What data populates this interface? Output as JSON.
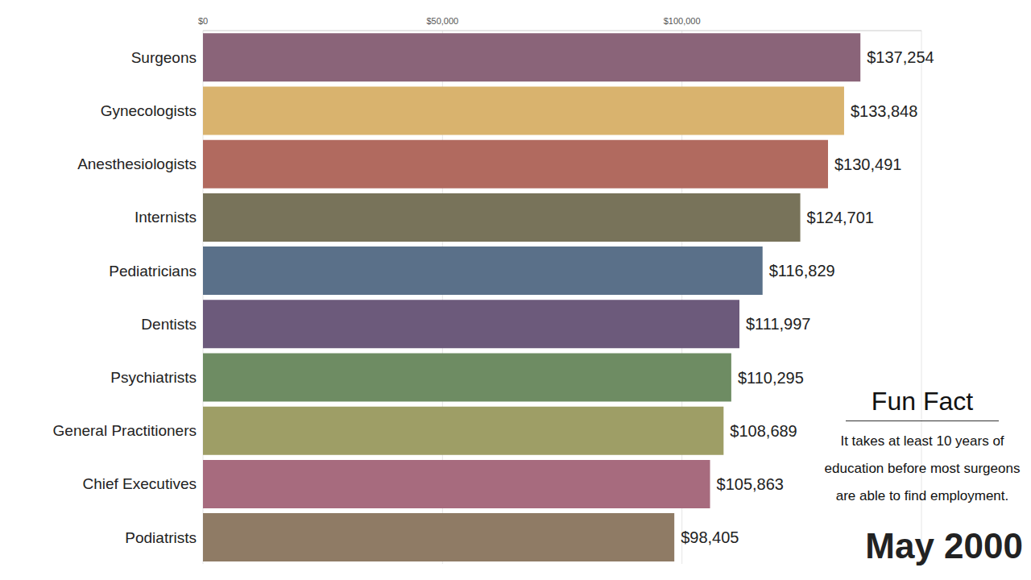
{
  "chart_data": {
    "type": "bar",
    "orientation": "horizontal",
    "categories": [
      "Surgeons",
      "Gynecologists",
      "Anesthesiologists",
      "Internists",
      "Pediatricians",
      "Dentists",
      "Psychiatrists",
      "General Practitioners",
      "Chief Executives",
      "Podiatrists"
    ],
    "values": [
      137254,
      133848,
      130491,
      124701,
      116829,
      111997,
      110295,
      108689,
      105863,
      98405
    ],
    "value_labels": [
      "$137,254",
      "$133,848",
      "$130,491",
      "$124,701",
      "$116,829",
      "$111,997",
      "$110,295",
      "$108,689",
      "$105,863",
      "$98,405"
    ],
    "colors": [
      "#8a6479",
      "#d9b36e",
      "#b16a5f",
      "#78735a",
      "#5a7089",
      "#6c5a7b",
      "#6e8c63",
      "#9e9e66",
      "#a76b7e",
      "#8f7b65"
    ],
    "xlim": [
      0,
      150000
    ],
    "xticks": [
      {
        "value": 0,
        "label": "$0"
      },
      {
        "value": 50000,
        "label": "$50,000"
      },
      {
        "value": 100000,
        "label": "$100,000"
      }
    ],
    "grid": true,
    "data_labels": true,
    "annotations": [
      "Fun Fact",
      "It takes at least 10 years of education before most surgeons are able to find employment.",
      "May 2000"
    ]
  }
}
